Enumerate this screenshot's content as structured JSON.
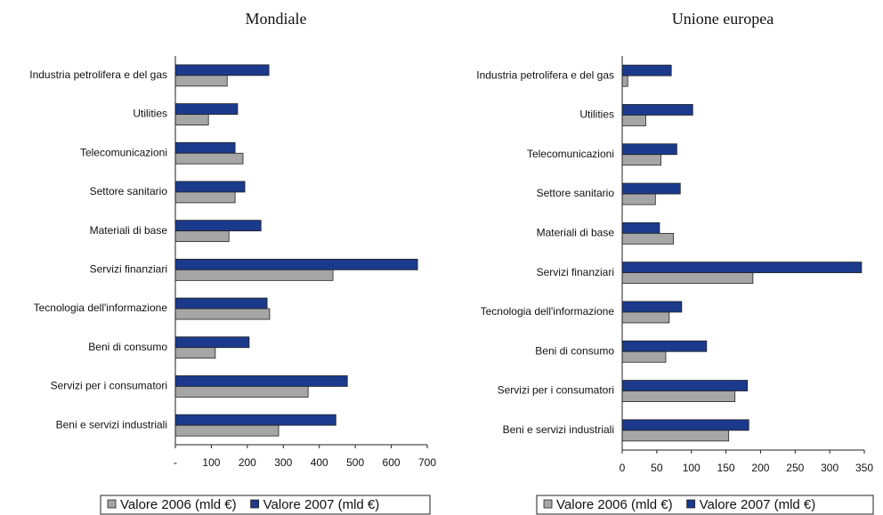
{
  "chart_data": [
    {
      "type": "bar",
      "title": "Mondiale",
      "categories": [
        "Industria petrolifera e del gas",
        "Utilities",
        "Telecomunicazioni",
        "Settore sanitario",
        "Materiali di base",
        "Servizi finanziari",
        "Tecnologia dell'informazione",
        "Beni di consumo",
        "Servizi per i consumatori",
        "Beni e servizi industriali"
      ],
      "series": [
        {
          "name": "Valore 2006 (mld €)",
          "color": "#a6a6a6",
          "values": [
            144,
            92,
            188,
            166,
            149,
            438,
            262,
            111,
            369,
            287
          ]
        },
        {
          "name": "Valore 2007 (mld €)",
          "color": "#1b3a8c",
          "values": [
            260,
            173,
            166,
            193,
            238,
            673,
            255,
            205,
            478,
            446
          ]
        }
      ],
      "xlim": [
        0,
        700
      ],
      "xticks": [
        {
          "value": 0,
          "label": "-"
        },
        100,
        200,
        300,
        400,
        500,
        600,
        700
      ],
      "legend": "bottom"
    },
    {
      "type": "bar",
      "title": "Unione europea",
      "categories": [
        "Industria petrolifera e del gas",
        "Utilities",
        "Telecomunicazioni",
        "Settore sanitario",
        "Materiali di base",
        "Servizi finanziari",
        "Tecnologia dell'informazione",
        "Beni di consumo",
        "Servizi per i consumatori",
        "Beni e servizi industriali"
      ],
      "series": [
        {
          "name": "Valore 2006 (mld €)",
          "color": "#a6a6a6",
          "values": [
            8,
            34,
            56,
            48,
            74,
            189,
            68,
            63,
            163,
            154
          ]
        },
        {
          "name": "Valore 2007 (mld €)",
          "color": "#1b3a8c",
          "values": [
            71,
            102,
            79,
            84,
            54,
            346,
            86,
            122,
            181,
            183
          ]
        }
      ],
      "xlim": [
        0,
        350
      ],
      "xticks": [
        0,
        50,
        100,
        150,
        200,
        250,
        300,
        350
      ],
      "legend": "bottom"
    }
  ]
}
